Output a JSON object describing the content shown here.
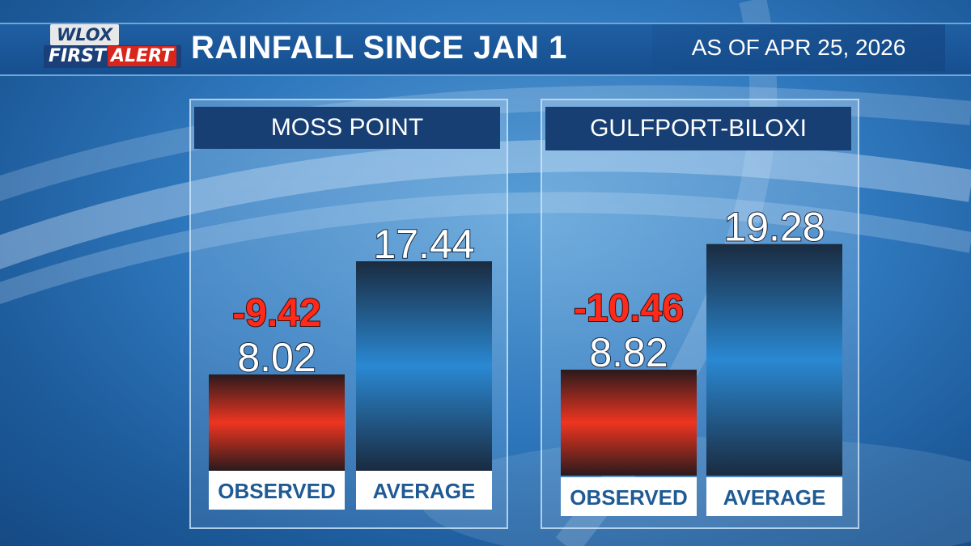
{
  "header": {
    "logo_top": "WLOX",
    "logo_first": "FIRST",
    "logo_alert": "ALERT",
    "title": "RAINFALL SINCE JAN 1",
    "as_of": "AS OF  APR 25, 2026"
  },
  "colors": {
    "observed": "#e8301f",
    "average": "#2a86d0",
    "departure_text": "#ff2a1a",
    "panel_title_bg": "#173f74"
  },
  "chart_data": [
    {
      "type": "bar",
      "title": "MOSS POINT",
      "categories": [
        "OBSERVED",
        "AVERAGE"
      ],
      "values": [
        8.02,
        17.44
      ],
      "value_labels": [
        "8.02",
        "17.44"
      ],
      "departure": "-9.42",
      "ylim": [
        0,
        20
      ],
      "legend": "none",
      "grid": false
    },
    {
      "type": "bar",
      "title": "GULFPORT-BILOXI",
      "categories": [
        "OBSERVED",
        "AVERAGE"
      ],
      "values": [
        8.82,
        19.28
      ],
      "value_labels": [
        "8.82",
        "19.28"
      ],
      "departure": "-10.46",
      "ylim": [
        0,
        20
      ],
      "legend": "none",
      "grid": false
    }
  ]
}
